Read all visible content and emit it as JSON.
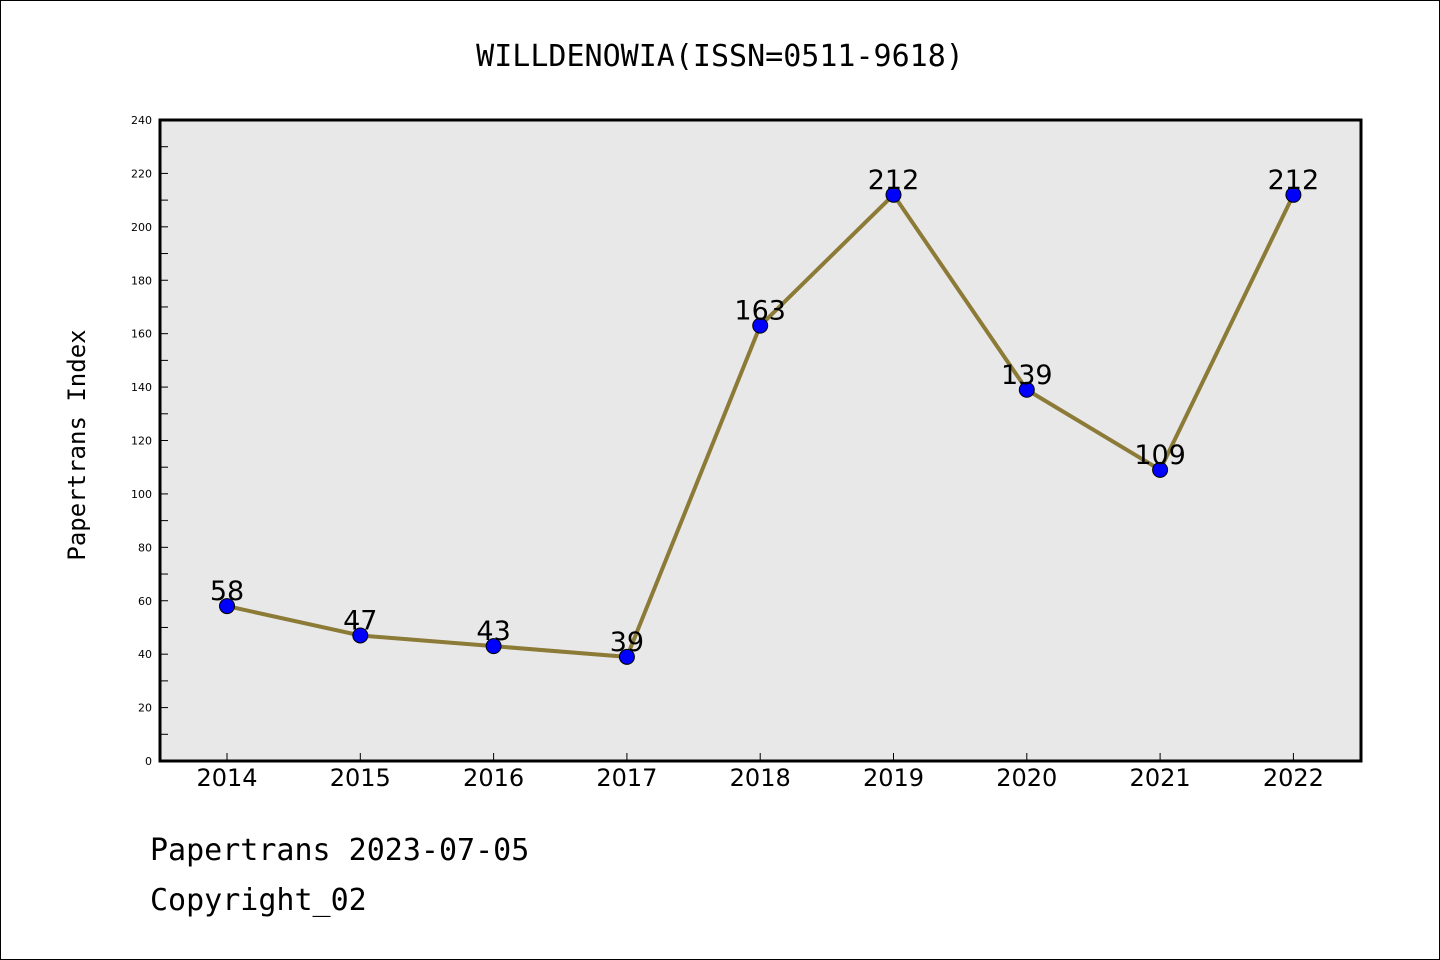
{
  "chart_data": {
    "type": "line",
    "title": "WILLDENOWIA(ISSN=0511-9618)",
    "xlabel": "",
    "ylabel": "Papertrans Index",
    "categories": [
      "2014",
      "2015",
      "2016",
      "2017",
      "2018",
      "2019",
      "2020",
      "2021",
      "2022"
    ],
    "series": [
      {
        "values": [
          58,
          47,
          43,
          39,
          163,
          212,
          139,
          109,
          212
        ]
      }
    ],
    "ylim": [
      0,
      240
    ],
    "yticks": [
      0,
      20,
      40,
      60,
      80,
      100,
      120,
      140,
      160,
      180,
      200,
      220,
      240
    ],
    "grid": false,
    "line_color": "#8c7a37",
    "marker_color": "#0000ff",
    "plot_background": "#e8e8e8"
  },
  "footer": {
    "date_line": "Papertrans 2023-07-05",
    "copyright_line": "Copyright_02"
  }
}
